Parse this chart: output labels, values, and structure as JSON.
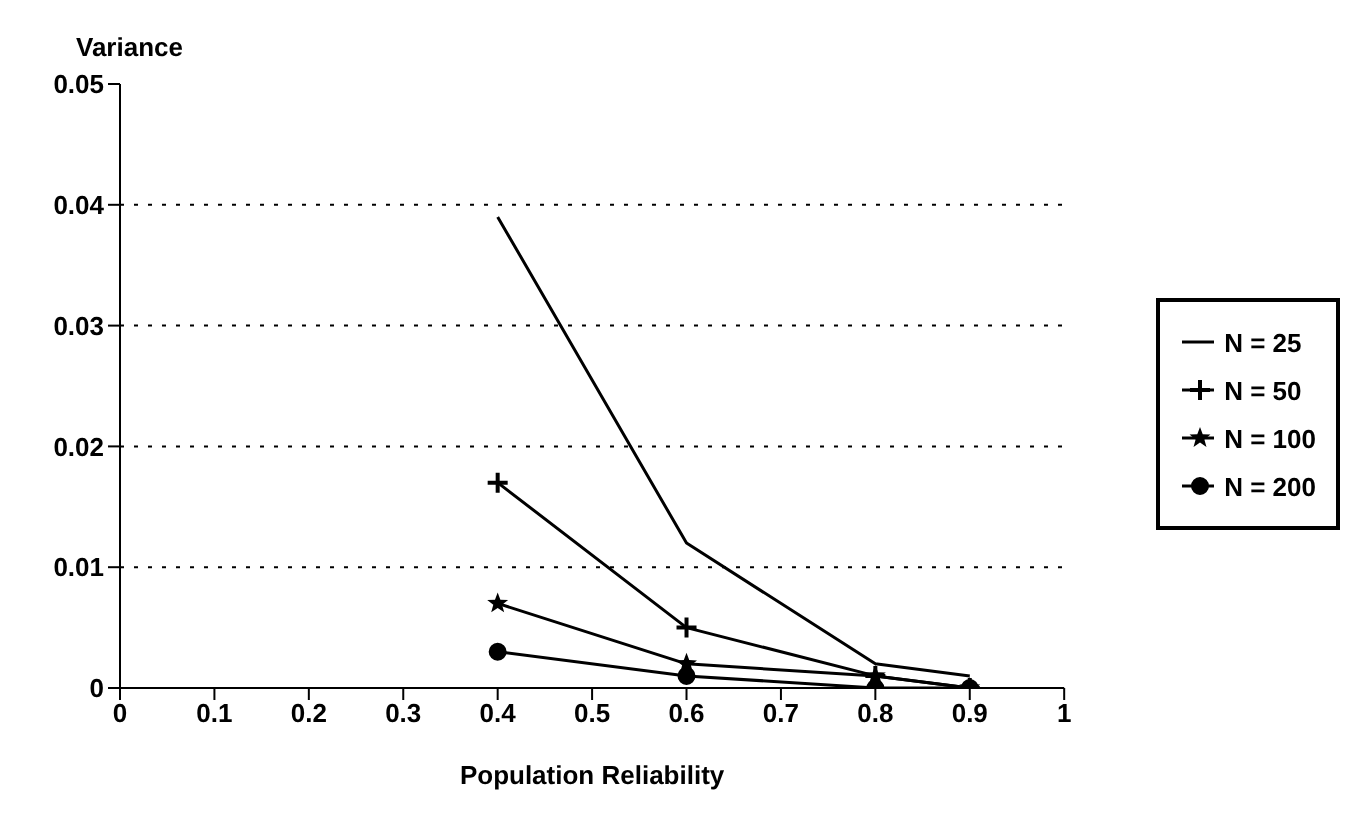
{
  "chart_data": {
    "type": "line",
    "xlabel": "Population Reliability",
    "ylabel": "Variance",
    "x": [
      0.4,
      0.6,
      0.8,
      0.9
    ],
    "series": [
      {
        "name": "N = 25",
        "color": "#000000",
        "marker": "none",
        "values": [
          0.039,
          0.012,
          0.002,
          0.001
        ]
      },
      {
        "name": "N = 50",
        "color": "#000000",
        "marker": "cross",
        "values": [
          0.017,
          0.005,
          0.001,
          0
        ]
      },
      {
        "name": "N = 100",
        "color": "#000000",
        "marker": "star",
        "values": [
          0.007,
          0.002,
          0.001,
          0
        ]
      },
      {
        "name": "N = 200",
        "color": "#000000",
        "marker": "circle",
        "values": [
          0.003,
          0.001,
          0,
          0
        ]
      }
    ],
    "xlim": [
      0,
      1
    ],
    "xticks": [
      0,
      0.1,
      0.2,
      0.3,
      0.4,
      0.5,
      0.6,
      0.7,
      0.8,
      0.9,
      1
    ],
    "ylim": [
      0,
      0.05
    ],
    "yticks": [
      0,
      0.01,
      0.02,
      0.03,
      0.04,
      0.05
    ],
    "grid": "y",
    "line_style": "solid",
    "legend": "right"
  }
}
